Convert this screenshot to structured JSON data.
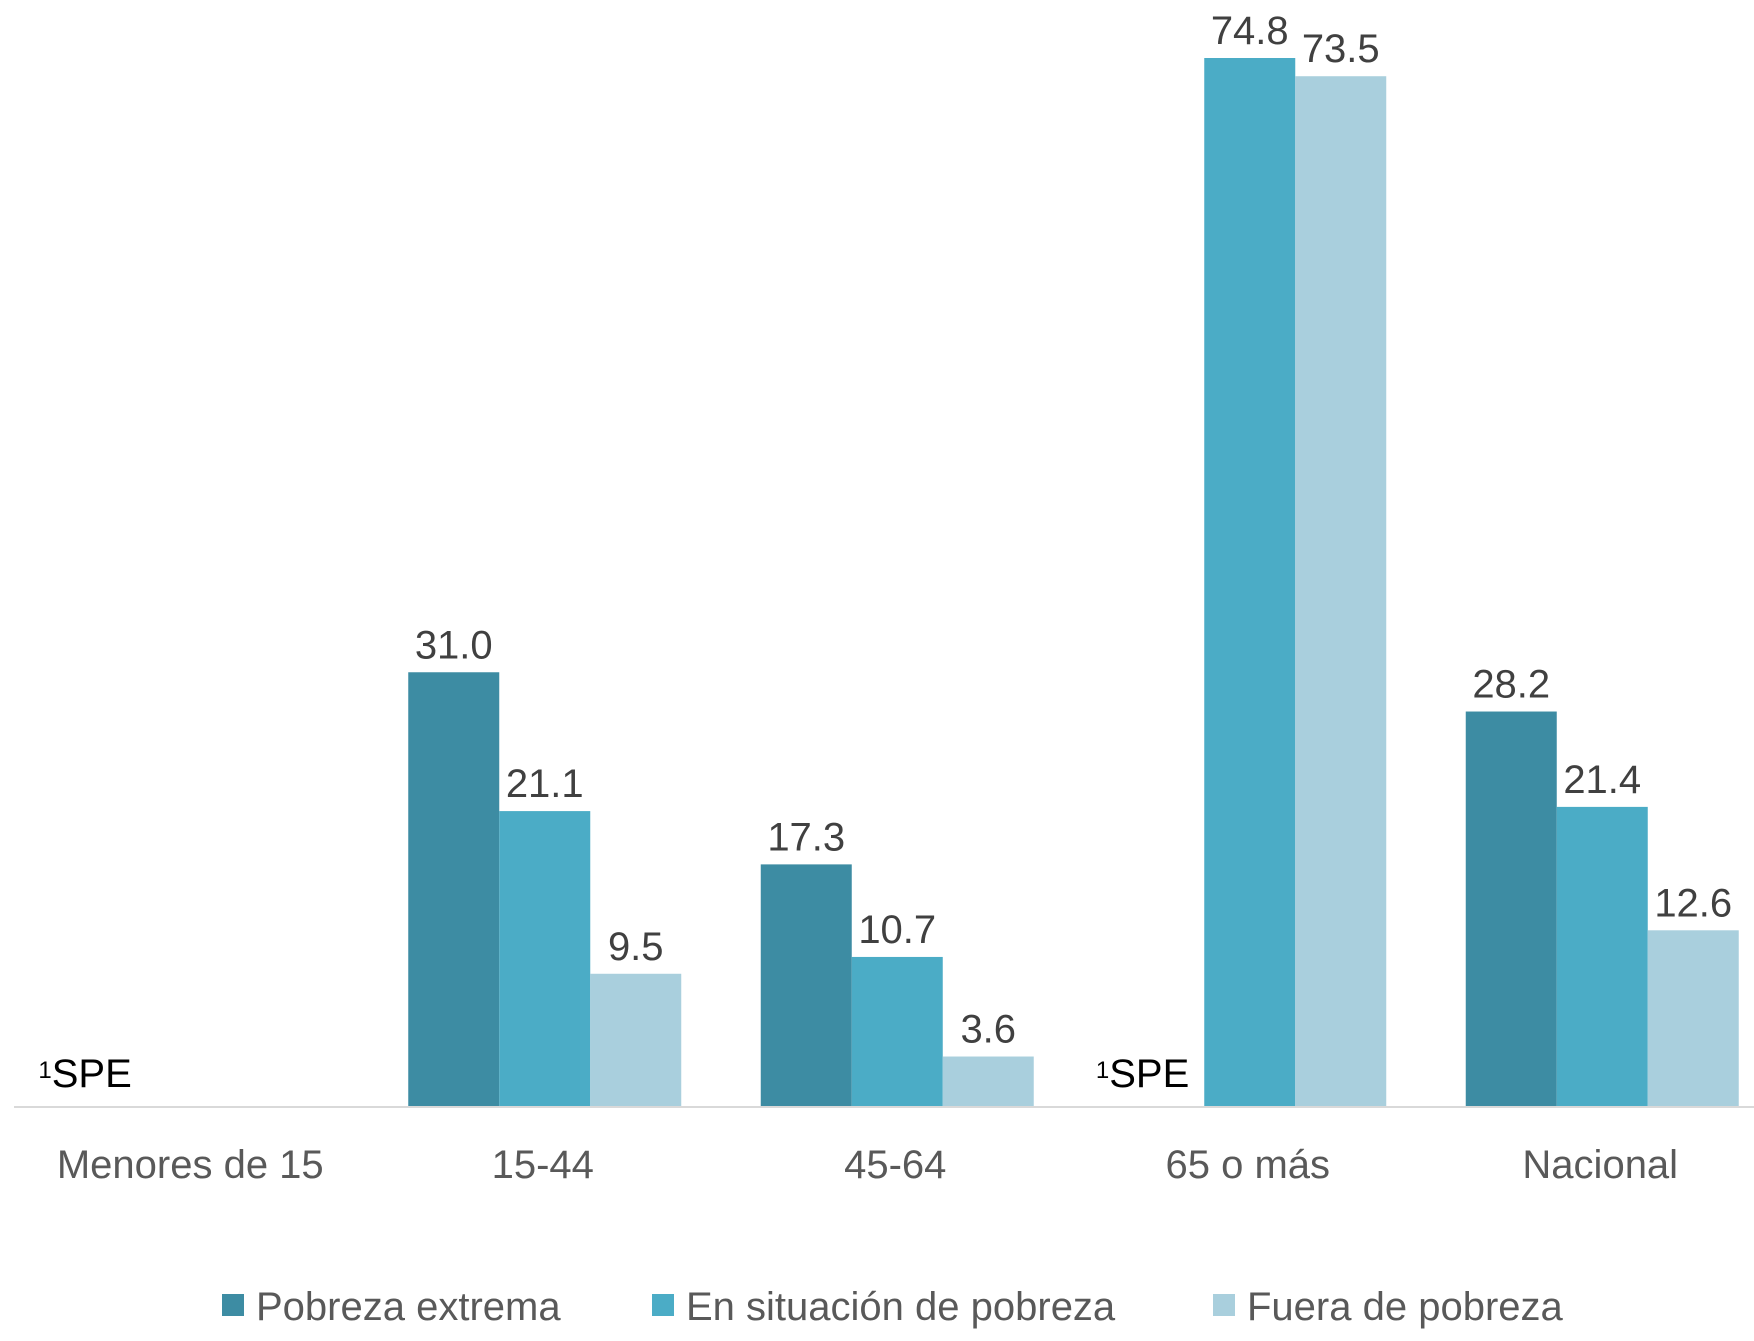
{
  "chart_data": {
    "type": "bar",
    "categories": [
      "Menores de 15",
      "15-44",
      "45-64",
      "65 o más",
      "Nacional"
    ],
    "series": [
      {
        "name": "Pobreza extrema",
        "color": "#3d8ca3",
        "values": [
          null,
          31.0,
          17.3,
          null,
          28.2
        ]
      },
      {
        "name": "En situación de pobreza",
        "color": "#4bacc6",
        "values": [
          null,
          21.1,
          10.7,
          74.8,
          21.4
        ]
      },
      {
        "name": "Fuera de pobreza",
        "color": "#a9cfdd",
        "values": [
          null,
          9.5,
          3.6,
          73.5,
          12.6
        ]
      }
    ],
    "value_labels": [
      [
        null,
        "31.0",
        "17.3",
        null,
        "28.2"
      ],
      [
        null,
        "21.1",
        "10.7",
        "74.8",
        "21.4"
      ],
      [
        null,
        "9.5",
        "3.6",
        "73.5",
        "12.6"
      ]
    ],
    "notes": [
      {
        "category": "Menores de 15",
        "marker": "1",
        "text": "SPE"
      },
      {
        "category": "65 o más",
        "marker": "1",
        "text": "SPE"
      }
    ],
    "ylim": [
      0,
      80
    ],
    "grid": false,
    "legend_position": "bottom",
    "title": "",
    "xlabel": "",
    "ylabel": ""
  }
}
